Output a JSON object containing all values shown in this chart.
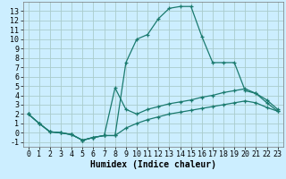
{
  "xlabel": "Humidex (Indice chaleur)",
  "bg_color": "#cceeff",
  "grid_color": "#aacccc",
  "line_color": "#1a7a6e",
  "xlim": [
    -0.5,
    23.5
  ],
  "ylim": [
    -1.5,
    14.0
  ],
  "xticks": [
    0,
    1,
    2,
    3,
    4,
    5,
    6,
    7,
    8,
    9,
    10,
    11,
    12,
    13,
    14,
    15,
    16,
    17,
    18,
    19,
    20,
    21,
    22,
    23
  ],
  "yticks": [
    -1,
    0,
    1,
    2,
    3,
    4,
    5,
    6,
    7,
    8,
    9,
    10,
    11,
    12,
    13
  ],
  "line1_x": [
    0,
    1,
    2,
    3,
    4,
    5,
    6,
    7,
    8,
    9,
    10,
    11,
    12,
    13,
    14,
    15,
    16,
    17,
    18,
    19,
    20,
    21,
    22,
    23
  ],
  "line1_y": [
    2.0,
    1.0,
    0.1,
    0.0,
    -0.2,
    -0.8,
    -0.5,
    -0.3,
    -0.3,
    7.5,
    10.0,
    10.5,
    12.2,
    13.3,
    13.5,
    13.5,
    10.3,
    7.5,
    7.5,
    7.5,
    4.5,
    4.2,
    3.2,
    2.3
  ],
  "line2_x": [
    0,
    1,
    2,
    3,
    4,
    5,
    6,
    7,
    8,
    9,
    10,
    11,
    12,
    13,
    14,
    15,
    16,
    17,
    18,
    19,
    20,
    21,
    22,
    23
  ],
  "line2_y": [
    2.0,
    1.0,
    0.1,
    0.0,
    -0.2,
    -0.8,
    -0.5,
    -0.3,
    4.8,
    2.5,
    2.0,
    2.5,
    2.8,
    3.1,
    3.3,
    3.5,
    3.8,
    4.0,
    4.3,
    4.5,
    4.7,
    4.2,
    3.5,
    2.5
  ],
  "line3_x": [
    0,
    1,
    2,
    3,
    4,
    5,
    6,
    7,
    8,
    9,
    10,
    11,
    12,
    13,
    14,
    15,
    16,
    17,
    18,
    19,
    20,
    21,
    22,
    23
  ],
  "line3_y": [
    2.0,
    1.0,
    0.1,
    0.0,
    -0.2,
    -0.8,
    -0.5,
    -0.3,
    -0.3,
    0.5,
    1.0,
    1.4,
    1.7,
    2.0,
    2.2,
    2.4,
    2.6,
    2.8,
    3.0,
    3.2,
    3.4,
    3.2,
    2.7,
    2.3
  ],
  "tick_fontsize": 6,
  "xlabel_fontsize": 7,
  "marker_size": 3.5,
  "linewidth": 0.9
}
